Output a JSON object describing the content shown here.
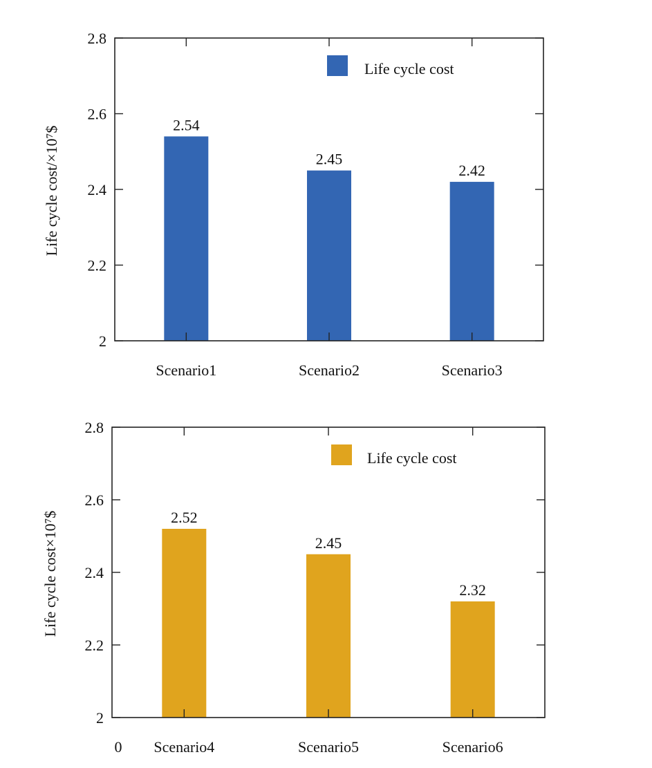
{
  "chart_data": [
    {
      "type": "bar",
      "categories": [
        "Scenario1",
        "Scenario2",
        "Scenario3"
      ],
      "values": [
        2.54,
        2.45,
        2.42
      ],
      "value_labels": [
        "2.54",
        "2.45",
        "2.42"
      ],
      "series_name": "Life cycle cost",
      "legend": "Life cycle cost",
      "legend_position": "top-right",
      "color": "#3366b3",
      "ylabel": "Life cycle cost/×10⁷$",
      "xlabel": "",
      "ylim": [
        2,
        2.8
      ],
      "yticks": [
        2,
        2.2,
        2.4,
        2.6,
        2.8
      ],
      "ytick_labels": [
        "2",
        "2.2",
        "2.4",
        "2.6",
        "2.8"
      ],
      "extra_x_label": "",
      "grid": false
    },
    {
      "type": "bar",
      "categories": [
        "Scenario4",
        "Scenario5",
        "Scenario6"
      ],
      "values": [
        2.52,
        2.45,
        2.32
      ],
      "value_labels": [
        "2.52",
        "2.45",
        "2.32"
      ],
      "series_name": "Life cycle cost",
      "legend": "Life cycle cost",
      "legend_position": "top-right",
      "color": "#e0a41e",
      "ylabel": "Life cycle cost×10⁷$",
      "xlabel": "",
      "ylim": [
        2,
        2.8
      ],
      "yticks": [
        2,
        2.2,
        2.4,
        2.6,
        2.8
      ],
      "ytick_labels": [
        "2",
        "2.2",
        "2.4",
        "2.6",
        "2.8"
      ],
      "extra_x_label": "0",
      "grid": false
    }
  ]
}
